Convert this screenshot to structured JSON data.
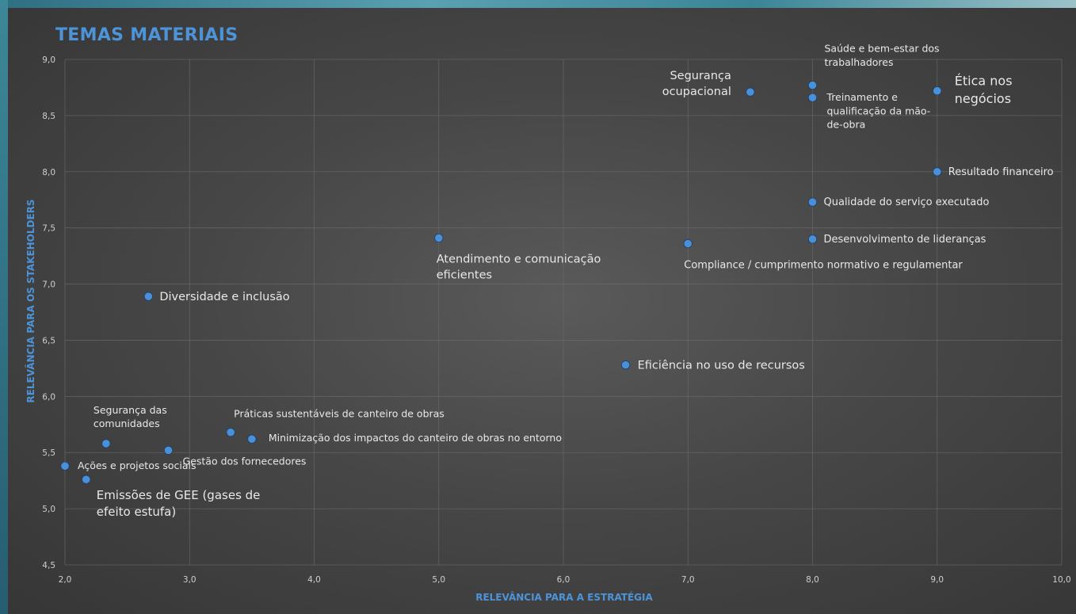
{
  "title": "TEMAS MATERIAIS",
  "chart_data": {
    "type": "scatter",
    "title": "TEMAS MATERIAIS",
    "xlabel": "RELEVÂNCIA PARA A ESTRATÉGIA",
    "ylabel": "RELEVÂNCIA PARA OS STAKEHOLDERS",
    "xlim": [
      2.0,
      10.0
    ],
    "ylim": [
      4.5,
      9.0
    ],
    "x_ticks": [
      "2,0",
      "3,0",
      "4,0",
      "5,0",
      "6,0",
      "7,0",
      "8,0",
      "9,0",
      "10,0"
    ],
    "y_ticks": [
      "4,5",
      "5,0",
      "5,5",
      "6,0",
      "6,5",
      "7,0",
      "7,5",
      "8,0",
      "8,5",
      "9,0"
    ],
    "grid": true,
    "points": [
      {
        "x": 9.0,
        "y": 8.72,
        "label": "Ética nos negócios"
      },
      {
        "x": 8.0,
        "y": 8.77,
        "label": "Saúde e bem-estar dos trabalhadores"
      },
      {
        "x": 8.0,
        "y": 8.66,
        "label": "Treinamento e qualificação da mão-de-obra"
      },
      {
        "x": 7.5,
        "y": 8.71,
        "label": "Segurança ocupacional"
      },
      {
        "x": 9.0,
        "y": 8.0,
        "label": "Resultado financeiro"
      },
      {
        "x": 8.0,
        "y": 7.73,
        "label": "Qualidade do serviço executado"
      },
      {
        "x": 8.0,
        "y": 7.4,
        "label": "Desenvolvimento de lideranças"
      },
      {
        "x": 7.0,
        "y": 7.36,
        "label": "Compliance / cumprimento normativo e regulamentar"
      },
      {
        "x": 5.0,
        "y": 7.41,
        "label": "Atendimento e comunicação eficientes"
      },
      {
        "x": 2.67,
        "y": 6.89,
        "label": "Diversidade e inclusão"
      },
      {
        "x": 6.5,
        "y": 6.28,
        "label": "Eficiência no uso de recursos"
      },
      {
        "x": 3.33,
        "y": 5.68,
        "label": "Práticas sustentáveis de canteiro de obras"
      },
      {
        "x": 3.5,
        "y": 5.62,
        "label": "Minimização dos impactos do canteiro de obras no entorno"
      },
      {
        "x": 2.33,
        "y": 5.58,
        "label": "Segurança das comunidades"
      },
      {
        "x": 2.83,
        "y": 5.52,
        "label": "Gestão dos fornecedores"
      },
      {
        "x": 2.0,
        "y": 5.38,
        "label": "Ações e projetos sociais"
      },
      {
        "x": 2.17,
        "y": 5.26,
        "label": "Emissões de GEE (gases de efeito estufa)"
      }
    ],
    "marker_color": "#4a90d9",
    "axis_title_color": "#4c93d8"
  }
}
